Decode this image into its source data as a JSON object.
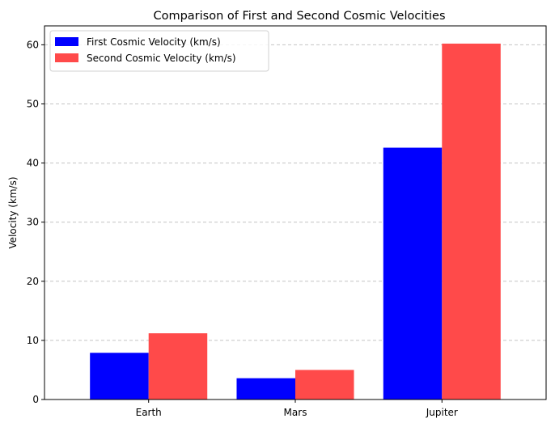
{
  "chart_data": {
    "type": "bar",
    "title": "Comparison of First and Second Cosmic Velocities",
    "xlabel": "",
    "ylabel": "Velocity (km/s)",
    "categories": [
      "Earth",
      "Mars",
      "Jupiter"
    ],
    "series": [
      {
        "name": "First Cosmic Velocity (km/s)",
        "values": [
          7.9,
          3.6,
          42.6
        ],
        "color": "#0000ff"
      },
      {
        "name": "Second Cosmic Velocity (km/s)",
        "values": [
          11.2,
          5.0,
          60.2
        ],
        "color": "#ff4a4a"
      }
    ],
    "ylim": [
      0,
      63.2
    ],
    "yticks": [
      0,
      10,
      20,
      30,
      40,
      50,
      60
    ],
    "grid": "y-dashed",
    "legend": "top-left"
  }
}
